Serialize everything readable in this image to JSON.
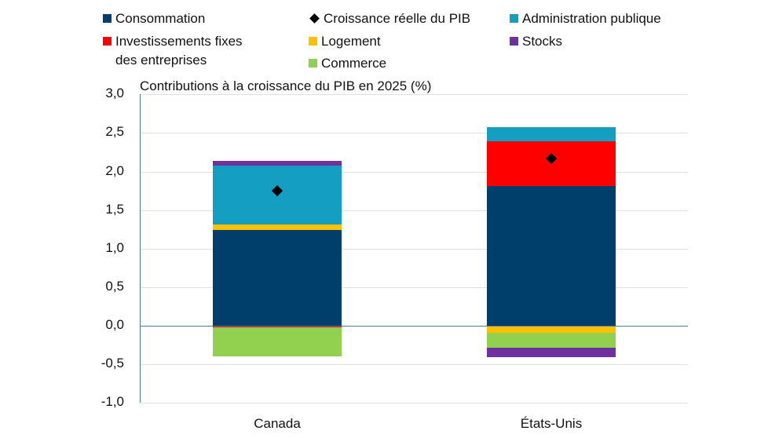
{
  "chart_data": {
    "type": "bar",
    "stacked": true,
    "title": "Contributions à la croissance du PIB en 2025 (%)",
    "xlabel": "",
    "ylabel": "",
    "ylim": [
      -1.0,
      3.0
    ],
    "yticks": [
      "3,0",
      "2,5",
      "2,0",
      "1,5",
      "1,0",
      "0,5",
      "0,0",
      "-0,5",
      "-1,0"
    ],
    "categories": [
      "Canada",
      "États-Unis"
    ],
    "series": [
      {
        "name": "Consommation",
        "color": "#003f6b",
        "values": [
          1.24,
          1.81
        ]
      },
      {
        "name": "Investissements fixes des entreprises",
        "color": "#ff0000",
        "values": [
          -0.02,
          0.58
        ]
      },
      {
        "name": "Logement",
        "color": "#ffc000",
        "values": [
          0.07,
          -0.09
        ]
      },
      {
        "name": "Commerce",
        "color": "#92d050",
        "values": [
          -0.38,
          -0.2
        ]
      },
      {
        "name": "Administration publique",
        "color": "#139ec2",
        "values": [
          0.77,
          0.19
        ]
      },
      {
        "name": "Stocks",
        "color": "#7030a0",
        "values": [
          0.06,
          -0.12
        ]
      }
    ],
    "markers": {
      "name": "Croissance réelle du PIB",
      "values": [
        1.75,
        2.17
      ]
    },
    "legend_position": "top",
    "grid": true
  },
  "legend": {
    "consommation": "Consommation",
    "croissance": "Croissance réelle du PIB",
    "administration": "Administration publique",
    "investissements_1": "Investissements fixes",
    "investissements_2": "des entreprises",
    "logement": "Logement",
    "stocks": "Stocks",
    "commerce": "Commerce"
  }
}
